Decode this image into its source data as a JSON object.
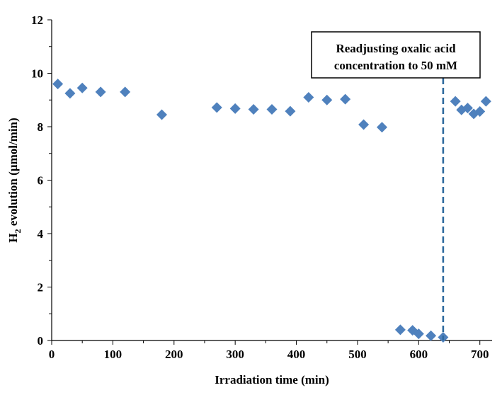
{
  "chart_data": {
    "type": "scatter",
    "xlabel": "Irradiation time (min)",
    "ylabel_main": "H",
    "ylabel_sub": "2",
    "ylabel_rest": " evolution (µmol/min)",
    "xlim": [
      0,
      720
    ],
    "ylim": [
      0,
      12
    ],
    "xticks": [
      "0",
      "100",
      "200",
      "300",
      "400",
      "500",
      "600",
      "700"
    ],
    "xtick_values": [
      0,
      100,
      200,
      300,
      400,
      500,
      600,
      700
    ],
    "yticks": [
      "0",
      "2",
      "4",
      "6",
      "8",
      "10",
      "12"
    ],
    "ytick_values": [
      0,
      2,
      4,
      6,
      8,
      10,
      12
    ],
    "grid": false,
    "marker": "diamond",
    "marker_color": "#4F81BD",
    "series": [
      {
        "points": [
          [
            10,
            9.6
          ],
          [
            30,
            9.25
          ],
          [
            50,
            9.45
          ],
          [
            80,
            9.3
          ],
          [
            120,
            9.3
          ],
          [
            180,
            8.45
          ],
          [
            270,
            8.72
          ],
          [
            300,
            8.68
          ],
          [
            330,
            8.65
          ],
          [
            360,
            8.65
          ],
          [
            390,
            8.58
          ],
          [
            420,
            9.1
          ],
          [
            450,
            9.0
          ],
          [
            480,
            9.03
          ],
          [
            510,
            8.08
          ],
          [
            540,
            7.98
          ],
          [
            570,
            0.4
          ],
          [
            590,
            0.38
          ],
          [
            600,
            0.25
          ],
          [
            620,
            0.18
          ],
          [
            640,
            0.12
          ],
          [
            660,
            8.95
          ],
          [
            670,
            8.63
          ],
          [
            680,
            8.7
          ],
          [
            690,
            8.48
          ],
          [
            700,
            8.57
          ],
          [
            710,
            8.95
          ]
        ]
      }
    ],
    "annotation": {
      "line1": "Readjusting oxalic acid",
      "line2": "concentration to 50 mM",
      "x_at": 640,
      "line_color": "#2E6A9E",
      "line_style": "dashed"
    }
  }
}
